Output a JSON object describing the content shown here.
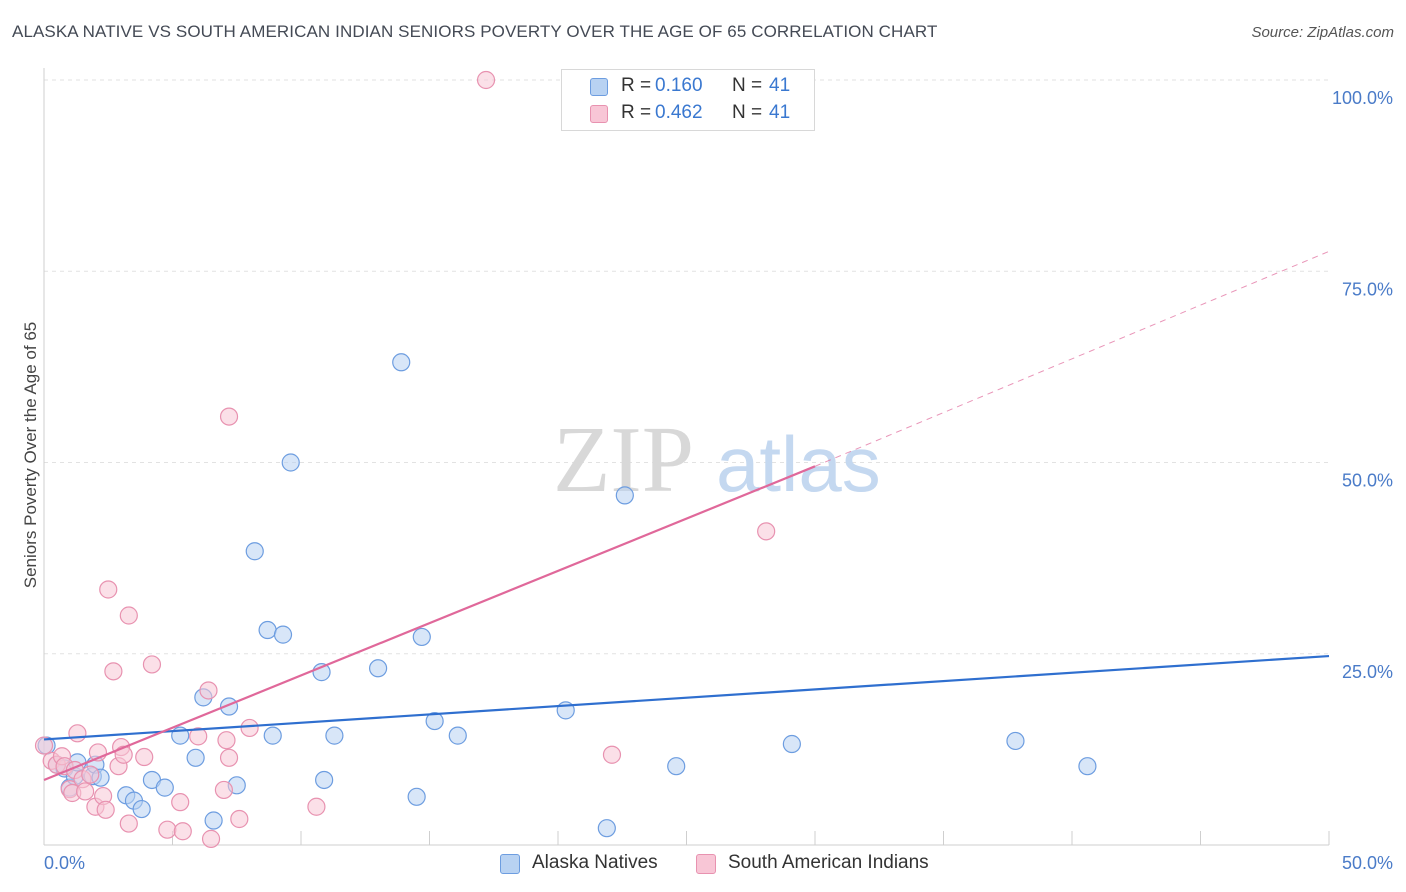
{
  "title": "ALASKA NATIVE VS SOUTH AMERICAN INDIAN SENIORS POVERTY OVER THE AGE OF 65 CORRELATION CHART",
  "source": "Source: ZipAtlas.com",
  "watermark": {
    "zip": "ZIP",
    "atlas": "atlas"
  },
  "colors": {
    "blue_fill": "#b8d2f2",
    "blue_stroke": "#6d9de0",
    "blue_line": "#2f6fcf",
    "pink_fill": "#f8c6d6",
    "pink_stroke": "#e892b0",
    "pink_line": "#e0689a",
    "tick_text": "#4a7bc8",
    "grid": "#e2e2e2"
  },
  "legend": [
    {
      "r_label": "R =",
      "r_value": "0.160",
      "n_label": "N =",
      "n_value": "41"
    },
    {
      "r_label": "R =",
      "r_value": "0.462",
      "n_label": "N =",
      "n_value": "41"
    }
  ],
  "bottom_legend": [
    "Alaska Natives",
    "South American Indians"
  ],
  "chart_data": {
    "type": "scatter",
    "title": "ALASKA NATIVE VS SOUTH AMERICAN INDIAN SENIORS POVERTY OVER THE AGE OF 65 CORRELATION CHART",
    "xlabel": "",
    "ylabel": "Seniors Poverty Over the Age of 65",
    "xlim": [
      0,
      50
    ],
    "ylim": [
      0,
      100
    ],
    "x_tick_labels": {
      "min": "0.0%",
      "max": "50.0%"
    },
    "y_ticks": [
      25,
      50,
      75,
      100
    ],
    "y_tick_labels": [
      "25.0%",
      "50.0%",
      "75.0%",
      "100.0%"
    ],
    "series": [
      {
        "name": "Alaska Natives",
        "color": "blue",
        "trend": {
          "x0": 0,
          "y0": 13.8,
          "x1": 50,
          "y1": 24.7,
          "dashed_to": null
        },
        "points": [
          [
            0.1,
            13.0
          ],
          [
            0.5,
            10.5
          ],
          [
            0.8,
            10.0
          ],
          [
            1.0,
            7.5
          ],
          [
            1.2,
            9.0
          ],
          [
            1.9,
            9.0
          ],
          [
            1.3,
            10.8
          ],
          [
            2.0,
            10.5
          ],
          [
            2.2,
            8.8
          ],
          [
            3.2,
            6.5
          ],
          [
            3.5,
            5.8
          ],
          [
            3.8,
            4.7
          ],
          [
            4.2,
            8.5
          ],
          [
            4.7,
            7.5
          ],
          [
            5.3,
            14.3
          ],
          [
            5.9,
            11.4
          ],
          [
            6.2,
            19.3
          ],
          [
            6.6,
            3.2
          ],
          [
            7.2,
            18.1
          ],
          [
            7.5,
            7.8
          ],
          [
            8.2,
            38.4
          ],
          [
            8.7,
            28.1
          ],
          [
            8.9,
            14.3
          ],
          [
            9.3,
            27.5
          ],
          [
            9.6,
            50.0
          ],
          [
            10.8,
            22.6
          ],
          [
            10.9,
            8.5
          ],
          [
            11.3,
            14.3
          ],
          [
            13.0,
            23.1
          ],
          [
            13.9,
            63.1
          ],
          [
            14.5,
            6.3
          ],
          [
            14.7,
            27.2
          ],
          [
            15.2,
            16.2
          ],
          [
            16.1,
            14.3
          ],
          [
            20.3,
            17.6
          ],
          [
            21.9,
            2.2
          ],
          [
            22.6,
            45.7
          ],
          [
            24.6,
            10.3
          ],
          [
            29.1,
            13.2
          ],
          [
            37.8,
            13.6
          ],
          [
            40.6,
            10.3
          ]
        ]
      },
      {
        "name": "South American Indians",
        "color": "pink",
        "trend": {
          "x0": 0,
          "y0": 8.5,
          "x1": 30,
          "y1": 49.5,
          "dashed_to": [
            50,
            77.6
          ]
        },
        "points": [
          [
            0.0,
            13.0
          ],
          [
            0.3,
            11.0
          ],
          [
            0.5,
            10.5
          ],
          [
            0.7,
            11.6
          ],
          [
            0.8,
            10.3
          ],
          [
            1.0,
            7.3
          ],
          [
            1.1,
            6.8
          ],
          [
            1.2,
            9.8
          ],
          [
            1.3,
            14.6
          ],
          [
            1.5,
            8.6
          ],
          [
            1.6,
            7.0
          ],
          [
            1.8,
            9.2
          ],
          [
            2.0,
            5.0
          ],
          [
            2.1,
            12.1
          ],
          [
            2.3,
            6.4
          ],
          [
            2.4,
            4.6
          ],
          [
            2.5,
            33.4
          ],
          [
            2.7,
            22.7
          ],
          [
            2.9,
            10.3
          ],
          [
            3.0,
            12.8
          ],
          [
            3.1,
            11.8
          ],
          [
            3.3,
            30.0
          ],
          [
            3.3,
            2.8
          ],
          [
            3.9,
            11.5
          ],
          [
            4.2,
            23.6
          ],
          [
            4.8,
            2.0
          ],
          [
            5.3,
            5.6
          ],
          [
            5.4,
            1.8
          ],
          [
            6.0,
            14.2
          ],
          [
            6.4,
            20.2
          ],
          [
            6.5,
            0.8
          ],
          [
            7.0,
            7.2
          ],
          [
            7.2,
            56.0
          ],
          [
            7.2,
            11.4
          ],
          [
            7.6,
            3.4
          ],
          [
            8.0,
            15.3
          ],
          [
            10.6,
            5.0
          ],
          [
            17.2,
            100.0
          ],
          [
            22.1,
            11.8
          ],
          [
            28.1,
            41.0
          ],
          [
            7.1,
            13.7
          ]
        ]
      }
    ]
  }
}
